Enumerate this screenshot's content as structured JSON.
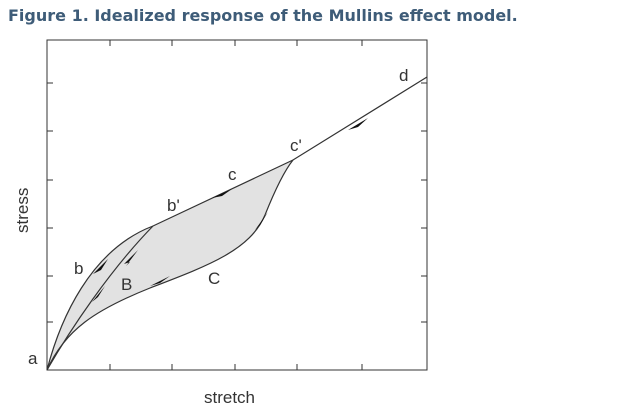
{
  "header": {
    "title": "Figure 1. Idealized response of the Mullins effect model."
  },
  "axes": {
    "x_label": "stretch",
    "y_label": "stress"
  },
  "points": {
    "a": "a",
    "b": "b",
    "b_prime": "b'",
    "c": "c",
    "c_prime": "c'",
    "d": "d",
    "B": "B",
    "C": "C"
  }
}
